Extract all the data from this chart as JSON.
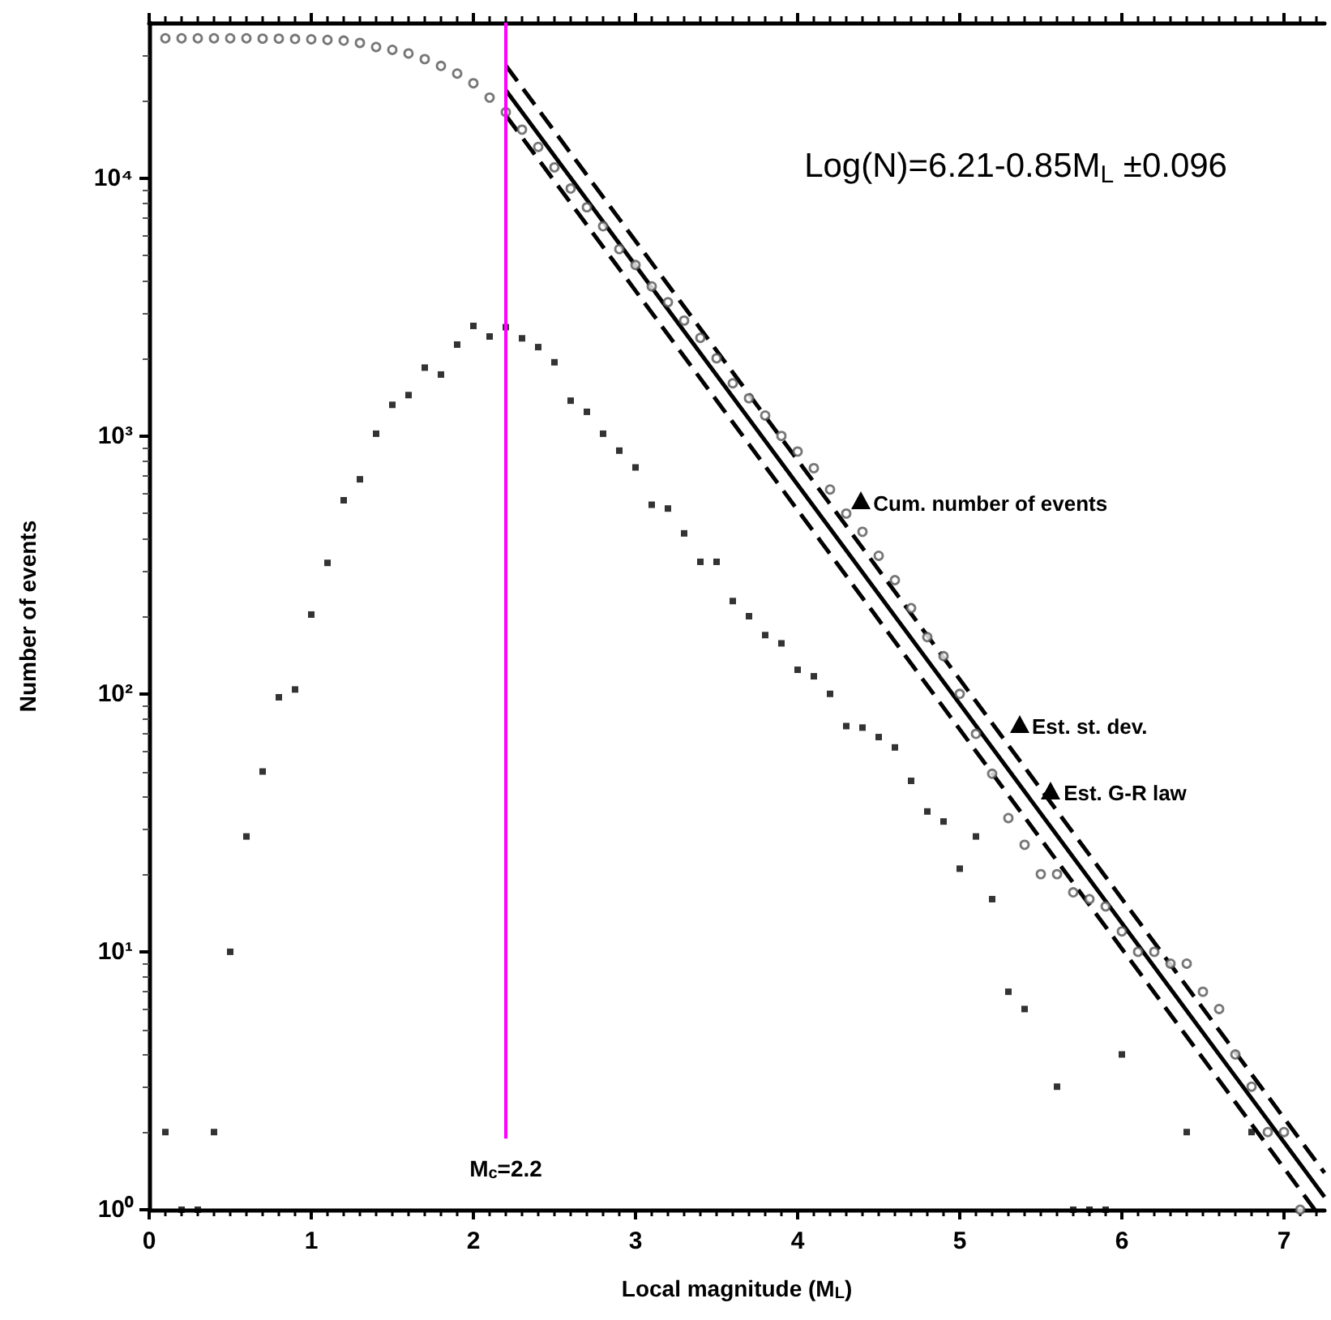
{
  "chart_data": {
    "type": "scatter",
    "xlabel": "Local magnitude (M$_{L}$)",
    "ylabel": "Number of events",
    "xlim": [
      0,
      7.25
    ],
    "xticks": [
      0,
      1,
      2,
      3,
      4,
      5,
      6,
      7
    ],
    "ylim": [
      1,
      40000
    ],
    "yticks": [
      {
        "value": 1,
        "label": "10⁰"
      },
      {
        "value": 10,
        "label": "10¹"
      },
      {
        "value": 100,
        "label": "10²"
      },
      {
        "value": 1000,
        "label": "10³"
      },
      {
        "value": 10000,
        "label": "10⁴"
      }
    ],
    "log": "y",
    "grid": false,
    "series": [
      {
        "marker": "circle",
        "color": "#555555",
        "x": [
          0.1,
          0.2,
          0.3,
          0.4,
          0.5,
          0.6,
          0.7,
          0.8,
          0.9,
          1.0,
          1.1,
          1.2,
          1.3,
          1.4,
          1.5,
          1.6,
          1.7,
          1.8,
          1.9,
          2.0,
          2.1,
          2.2,
          2.3,
          2.4,
          2.5,
          2.6,
          2.7,
          2.8,
          2.9,
          3.0,
          3.1,
          3.2,
          3.3,
          3.4,
          3.5,
          3.6,
          3.7,
          3.8,
          3.9,
          4.0,
          4.1,
          4.2,
          4.3,
          4.4,
          4.5,
          4.6,
          4.7,
          4.8,
          4.9,
          5.0,
          5.1,
          5.2,
          5.3,
          5.4,
          5.5,
          5.6,
          5.7,
          5.8,
          5.9,
          6.0,
          6.1,
          6.2,
          6.3,
          6.4,
          6.5,
          6.6,
          6.7,
          6.8,
          6.9,
          7.0,
          7.1
        ],
        "values": [
          34800,
          34800,
          34800,
          34800,
          34800,
          34800,
          34700,
          34700,
          34600,
          34500,
          34300,
          34100,
          33400,
          32200,
          31400,
          30400,
          28900,
          27200,
          25400,
          23300,
          20500,
          18000,
          15400,
          13200,
          11000,
          9100,
          7700,
          6500,
          5300,
          4600,
          3800,
          3300,
          2800,
          2400,
          2000,
          1600,
          1400,
          1200,
          1000,
          870,
          750,
          620,
          500,
          425,
          343,
          276,
          215,
          166,
          140,
          100,
          70,
          49,
          33,
          26,
          20,
          20,
          17,
          16,
          15,
          12,
          10,
          10,
          9,
          9,
          7,
          6,
          4,
          3,
          2,
          2,
          1
        ]
      },
      {
        "marker": "square",
        "color": "#000000",
        "x": [
          0.1,
          0.2,
          0.3,
          0.4,
          0.5,
          0.6,
          0.7,
          0.8,
          0.9,
          1.0,
          1.1,
          1.2,
          1.3,
          1.4,
          1.5,
          1.6,
          1.7,
          1.8,
          1.9,
          2.0,
          2.1,
          2.2,
          2.3,
          2.4,
          2.5,
          2.6,
          2.7,
          2.8,
          2.9,
          3.0,
          3.1,
          3.2,
          3.3,
          3.4,
          3.5,
          3.6,
          3.7,
          3.8,
          3.9,
          4.0,
          4.1,
          4.2,
          4.3,
          4.4,
          4.5,
          4.6,
          4.7,
          4.8,
          4.9,
          5.0,
          5.1,
          5.2,
          5.3,
          5.4,
          5.6,
          5.7,
          5.8,
          5.9,
          6.0,
          6.4,
          6.8
        ],
        "values": [
          2,
          1,
          1,
          2,
          10,
          28,
          50,
          97,
          104,
          203,
          322,
          563,
          679,
          1020,
          1320,
          1440,
          1840,
          1730,
          2260,
          2670,
          2430,
          2640,
          2390,
          2210,
          1930,
          1370,
          1240,
          1020,
          877,
          755,
          541,
          523,
          419,
          325,
          325,
          229,
          200,
          169,
          157,
          124,
          117,
          100,
          75,
          74,
          68,
          62,
          46,
          35,
          32,
          21,
          28,
          16,
          7,
          6,
          3,
          1,
          1,
          1,
          4,
          2,
          2
        ]
      },
      {
        "type": "line",
        "line_style": "solid",
        "color": "#000000",
        "x": [
          2.2,
          7.25
        ],
        "values": [
          21900,
          1.12
        ]
      },
      {
        "type": "line",
        "line_style": "dashed",
        "color": "#000000",
        "x": [
          2.2,
          7.25
        ],
        "values": [
          27300,
          1.39
        ]
      },
      {
        "type": "line",
        "line_style": "dashed",
        "color": "#000000",
        "x": [
          2.2,
          7.19
        ],
        "values": [
          17500,
          1
        ]
      }
    ],
    "ref_lines": [
      {
        "axis": "x",
        "value": 2.2,
        "label": "M$_{c}$=2.2",
        "color": "#ff00ff"
      }
    ],
    "annotations": [
      "Log(N)=6.21-0.85M$_{L}$ ±0.096",
      "Cum. number of events",
      "Est. st. dev.",
      "Est. G-R law"
    ]
  }
}
